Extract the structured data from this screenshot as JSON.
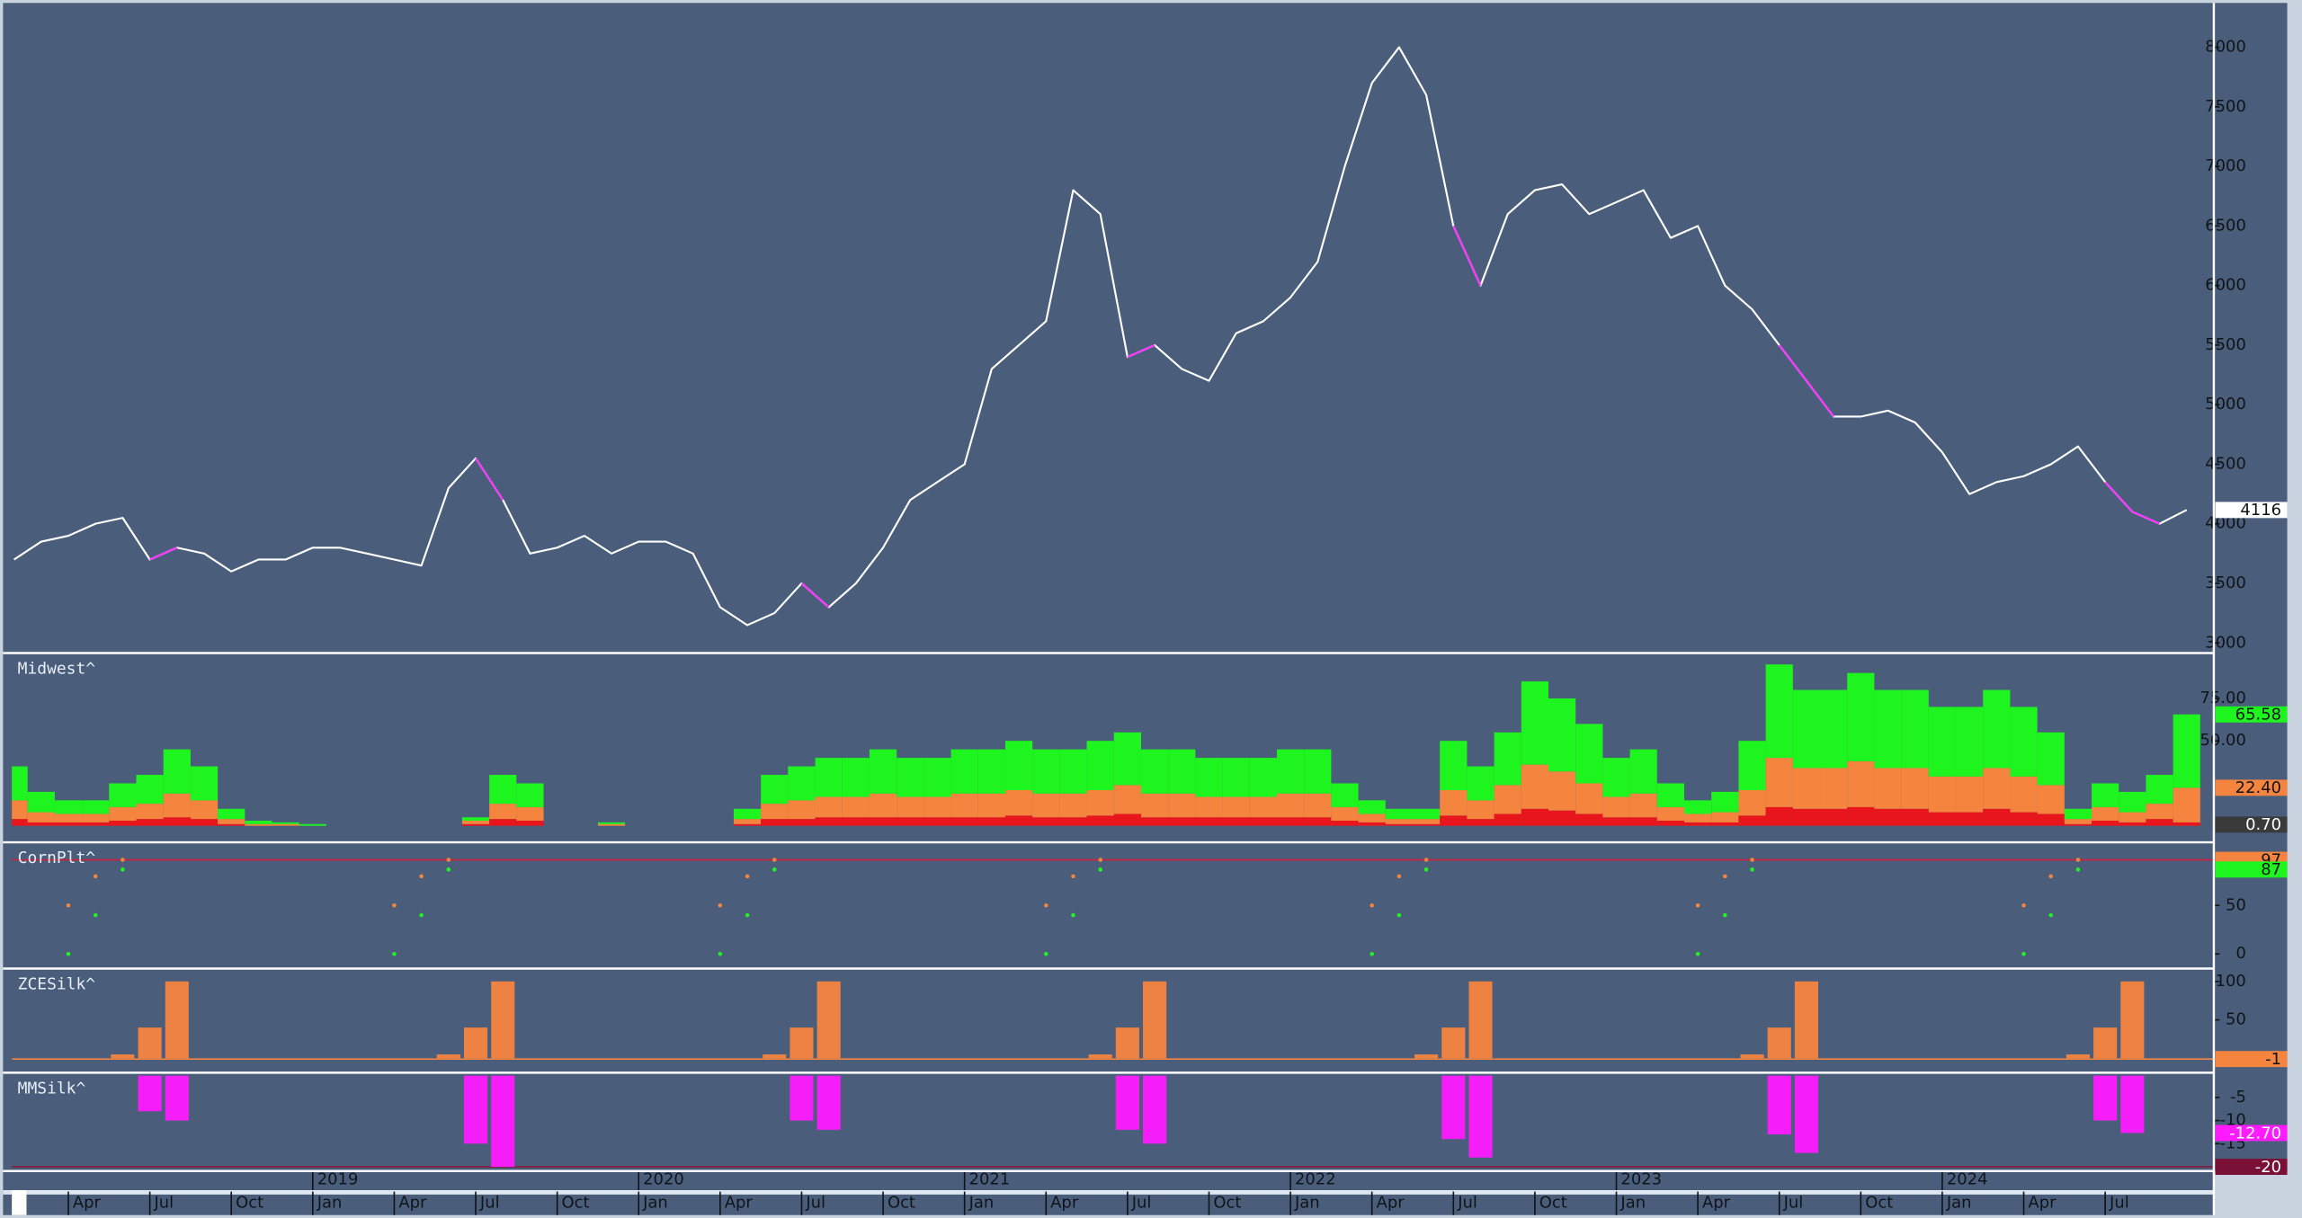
{
  "chart_data": [
    {
      "type": "line",
      "x": [
        "2018-02",
        "2018-03",
        "2018-04",
        "2018-05",
        "2018-06",
        "2018-07",
        "2018-08",
        "2018-09",
        "2018-10",
        "2018-11",
        "2018-12",
        "2019-01",
        "2019-02",
        "2019-03",
        "2019-04",
        "2019-05",
        "2019-06",
        "2019-07",
        "2019-08",
        "2019-09",
        "2019-10",
        "2019-11",
        "2019-12",
        "2020-01",
        "2020-02",
        "2020-03",
        "2020-04",
        "2020-05",
        "2020-06",
        "2020-07",
        "2020-08",
        "2020-09",
        "2020-10",
        "2020-11",
        "2020-12",
        "2021-01",
        "2021-02",
        "2021-03",
        "2021-04",
        "2021-05",
        "2021-06",
        "2021-07",
        "2021-08",
        "2021-09",
        "2021-10",
        "2021-11",
        "2021-12",
        "2022-01",
        "2022-02",
        "2022-03",
        "2022-04",
        "2022-05",
        "2022-06",
        "2022-07",
        "2022-08",
        "2022-09",
        "2022-10",
        "2022-11",
        "2022-12",
        "2023-01",
        "2023-02",
        "2023-03",
        "2023-04",
        "2023-05",
        "2023-06",
        "2023-07",
        "2023-08",
        "2023-09",
        "2023-10",
        "2023-11",
        "2023-12",
        "2024-01",
        "2024-02",
        "2024-03",
        "2024-04",
        "2024-05",
        "2024-06",
        "2024-07",
        "2024-08",
        "2024-09",
        "2024-10"
      ],
      "series": [
        {
          "color": "#ffffff",
          "values": [
            3700,
            3850,
            3900,
            4000,
            4050,
            3700,
            3800,
            3750,
            3600,
            3700,
            3700,
            3800,
            3800,
            3750,
            3700,
            3650,
            4300,
            4550,
            4200,
            3750,
            3800,
            3900,
            3750,
            3850,
            3850,
            3750,
            3300,
            3150,
            3250,
            3500,
            3300,
            3500,
            3800,
            4200,
            4350,
            4500,
            5300,
            5500,
            5700,
            6800,
            6600,
            5400,
            5500,
            5300,
            5200,
            5600,
            5700,
            5900,
            6200,
            7000,
            7700,
            8000,
            7600,
            6500,
            6000,
            6600,
            6800,
            6850,
            6600,
            6700,
            6800,
            6400,
            6500,
            6000,
            5800,
            5500,
            5200,
            4900,
            4900,
            4950,
            4850,
            4600,
            4250,
            4350,
            4400,
            4500,
            4650,
            4350,
            4100,
            4000,
            4116
          ]
        },
        {
          "color": "#ff33ff",
          "values": [
            null,
            null,
            null,
            null,
            null,
            3700,
            3800,
            null,
            null,
            null,
            null,
            null,
            null,
            null,
            null,
            null,
            null,
            4550,
            4200,
            null,
            null,
            null,
            null,
            null,
            null,
            null,
            null,
            null,
            null,
            3500,
            3300,
            null,
            null,
            null,
            null,
            null,
            null,
            null,
            null,
            null,
            null,
            5400,
            5500,
            null,
            null,
            null,
            null,
            null,
            null,
            null,
            null,
            null,
            null,
            6500,
            6000,
            null,
            null,
            null,
            null,
            null,
            null,
            null,
            null,
            null,
            null,
            5500,
            5200,
            4900,
            null,
            null,
            null,
            null,
            null,
            null,
            null,
            null,
            null,
            4350,
            4100,
            4000,
            null
          ]
        }
      ],
      "ylim": [
        2940,
        8360
      ],
      "yticks": [
        3000,
        3500,
        4000,
        4500,
        5000,
        5500,
        6000,
        6500,
        7000,
        7500,
        8000
      ],
      "tags": [
        {
          "value": 4116,
          "color": "#ffffff"
        }
      ]
    },
    {
      "type": "stacked_bar",
      "title": "Midwest^",
      "x": [
        "2018-02",
        "2018-03",
        "2018-04",
        "2018-05",
        "2018-06",
        "2018-07",
        "2018-08",
        "2018-09",
        "2018-10",
        "2018-11",
        "2018-12",
        "2019-01",
        "2019-02",
        "2019-03",
        "2019-04",
        "2019-05",
        "2019-06",
        "2019-07",
        "2019-08",
        "2019-09",
        "2019-10",
        "2019-11",
        "2019-12",
        "2020-01",
        "2020-02",
        "2020-03",
        "2020-04",
        "2020-05",
        "2020-06",
        "2020-07",
        "2020-08",
        "2020-09",
        "2020-10",
        "2020-11",
        "2020-12",
        "2021-01",
        "2021-02",
        "2021-03",
        "2021-04",
        "2021-05",
        "2021-06",
        "2021-07",
        "2021-08",
        "2021-09",
        "2021-10",
        "2021-11",
        "2021-12",
        "2022-01",
        "2022-02",
        "2022-03",
        "2022-04",
        "2022-05",
        "2022-06",
        "2022-07",
        "2022-08",
        "2022-09",
        "2022-10",
        "2022-11",
        "2022-12",
        "2023-01",
        "2023-02",
        "2023-03",
        "2023-04",
        "2023-05",
        "2023-06",
        "2023-07",
        "2023-08",
        "2023-09",
        "2023-10",
        "2023-11",
        "2023-12",
        "2024-01",
        "2024-02",
        "2024-03",
        "2024-04",
        "2024-05",
        "2024-06",
        "2024-07",
        "2024-08",
        "2024-09",
        "2024-10"
      ],
      "series": [
        {
          "color": "#e8161c",
          "values": [
            4,
            2,
            2,
            2,
            3,
            4,
            5,
            4,
            1,
            0,
            0,
            0,
            0,
            0,
            0,
            0,
            0,
            1,
            4,
            3,
            0,
            0,
            0,
            0,
            0,
            0,
            0,
            1,
            4,
            4,
            5,
            5,
            5,
            5,
            5,
            5,
            5,
            6,
            5,
            5,
            6,
            7,
            5,
            5,
            5,
            5,
            5,
            5,
            5,
            3,
            2,
            1,
            1,
            6,
            4,
            7,
            10,
            9,
            7,
            5,
            5,
            3,
            2,
            2,
            6,
            11,
            10,
            10,
            11,
            10,
            10,
            8,
            8,
            10,
            8,
            7,
            1,
            3,
            2,
            4,
            2
          ]
        },
        {
          "color": "#f5843f",
          "values": [
            11,
            6,
            5,
            5,
            8,
            9,
            14,
            11,
            3,
            1,
            1,
            0,
            0,
            0,
            0,
            0,
            0,
            2,
            9,
            8,
            0,
            0,
            1,
            0,
            0,
            0,
            0,
            3,
            9,
            11,
            12,
            12,
            14,
            12,
            12,
            14,
            14,
            15,
            14,
            14,
            15,
            17,
            14,
            14,
            12,
            12,
            12,
            14,
            14,
            8,
            5,
            3,
            3,
            15,
            11,
            17,
            26,
            23,
            18,
            12,
            14,
            8,
            5,
            6,
            15,
            29,
            24,
            24,
            27,
            24,
            24,
            21,
            21,
            24,
            21,
            17,
            3,
            8,
            6,
            9,
            20.4
          ]
        },
        {
          "color": "#1ef51e",
          "values": [
            20,
            12,
            8,
            8,
            14,
            17,
            26,
            20,
            6,
            2,
            1,
            1,
            0,
            0,
            0,
            0,
            0,
            2,
            17,
            14,
            0,
            0,
            1,
            0,
            0,
            0,
            0,
            6,
            17,
            20,
            23,
            23,
            26,
            23,
            23,
            26,
            26,
            29,
            26,
            26,
            29,
            31,
            26,
            26,
            23,
            23,
            23,
            26,
            26,
            14,
            8,
            6,
            6,
            29,
            20,
            31,
            49,
            43,
            35,
            23,
            26,
            14,
            8,
            12,
            29,
            55,
            46,
            46,
            52,
            46,
            46,
            41,
            41,
            46,
            41,
            31,
            6,
            14,
            12,
            17,
            43.18
          ]
        }
      ],
      "ylim": [
        -8,
        100
      ],
      "yticks": [
        {
          "value": 50,
          "label": "50.00"
        },
        {
          "value": 75,
          "label": "75.00"
        }
      ],
      "tags": [
        {
          "value": 65.58,
          "label": "65.58",
          "color": "#1ef51e"
        },
        {
          "value": 22.4,
          "label": "22.40",
          "color": "#f5843f"
        },
        {
          "value": 0.7,
          "label": "0.70",
          "color": "#3a3a3a",
          "text_color": "#ffffff"
        }
      ]
    },
    {
      "type": "scatter",
      "title": "CornPlt^",
      "x": [
        "2018-04",
        "2018-05",
        "2018-06",
        "2019-04",
        "2019-05",
        "2019-06",
        "2020-04",
        "2020-05",
        "2020-06",
        "2021-04",
        "2021-05",
        "2021-06",
        "2022-04",
        "2022-05",
        "2022-06",
        "2023-04",
        "2023-05",
        "2023-06",
        "2024-04",
        "2024-05",
        "2024-06"
      ],
      "series": [
        {
          "color": "#f5843f",
          "values": [
            50,
            80,
            97,
            50,
            80,
            97,
            50,
            80,
            97,
            50,
            80,
            97,
            50,
            80,
            97,
            50,
            80,
            97,
            50,
            80,
            97
          ]
        },
        {
          "color": "#1ef51e",
          "values": [
            0,
            40,
            87,
            0,
            40,
            87,
            0,
            40,
            87,
            0,
            40,
            87,
            0,
            40,
            87,
            0,
            40,
            87,
            0,
            40,
            87
          ]
        }
      ],
      "ylim": [
        -12,
        112
      ],
      "yticks": [
        0,
        50
      ],
      "ref_lines": [
        {
          "value": 97,
          "color": "#d0203a"
        }
      ],
      "tags": [
        {
          "value": 97,
          "color": "#f5843f"
        },
        {
          "value": 87,
          "color": "#1ef51e"
        }
      ]
    },
    {
      "type": "bar",
      "title": "ZCESilk^",
      "x": [
        "2018-06",
        "2018-07",
        "2018-08",
        "2019-06",
        "2019-07",
        "2019-08",
        "2020-06",
        "2020-07",
        "2020-08",
        "2021-06",
        "2021-07",
        "2021-08",
        "2022-06",
        "2022-07",
        "2022-08",
        "2023-06",
        "2023-07",
        "2023-08",
        "2024-06",
        "2024-07",
        "2024-08"
      ],
      "color": "#f5843f",
      "values": [
        5,
        40,
        100,
        5,
        40,
        100,
        5,
        40,
        100,
        5,
        40,
        100,
        5,
        40,
        100,
        5,
        40,
        100,
        5,
        40,
        100
      ],
      "ylim": [
        -15,
        113
      ],
      "yticks": [
        50,
        100
      ],
      "ref_lines": [
        {
          "value": -1,
          "color": "#f5843f"
        }
      ],
      "tags": [
        {
          "value": -1,
          "color": "#f5843f"
        }
      ]
    },
    {
      "type": "bar",
      "title": "MMSilk^",
      "x": [
        "2018-07",
        "2018-08",
        "2019-07",
        "2019-08",
        "2020-07",
        "2020-08",
        "2021-07",
        "2021-08",
        "2022-07",
        "2022-08",
        "2023-07",
        "2023-08",
        "2024-07",
        "2024-08"
      ],
      "color": "#ff1aff",
      "values": [
        -8,
        -10,
        -15,
        -20,
        -10,
        -12,
        -12,
        -15,
        -14,
        -18,
        -13,
        -17,
        -10,
        -12.7
      ],
      "ylim": [
        -20.6,
        -0.3
      ],
      "yticks": [
        -5,
        -10,
        -15
      ],
      "ref_lines": [
        {
          "value": -20,
          "color": "#8b1a3a"
        }
      ],
      "tags": [
        {
          "value": -12.7,
          "label": "-12.70",
          "color": "#ff1aff",
          "text_color": "#ffffff"
        },
        {
          "value": -20,
          "color": "#7a1035",
          "text_color": "#ffffff"
        }
      ]
    }
  ],
  "time_axis": {
    "month_ticks": [
      {
        "value": "2018-04",
        "label": "Apr"
      },
      {
        "value": "2018-07",
        "label": "Jul"
      },
      {
        "value": "2018-10",
        "label": "Oct"
      },
      {
        "value": "2019-01",
        "label": "Jan"
      },
      {
        "value": "2019-04",
        "label": "Apr"
      },
      {
        "value": "2019-07",
        "label": "Jul"
      },
      {
        "value": "2019-10",
        "label": "Oct"
      },
      {
        "value": "2020-01",
        "label": "Jan"
      },
      {
        "value": "2020-04",
        "label": "Apr"
      },
      {
        "value": "2020-07",
        "label": "Jul"
      },
      {
        "value": "2020-10",
        "label": "Oct"
      },
      {
        "value": "2021-01",
        "label": "Jan"
      },
      {
        "value": "2021-04",
        "label": "Apr"
      },
      {
        "value": "2021-07",
        "label": "Jul"
      },
      {
        "value": "2021-10",
        "label": "Oct"
      },
      {
        "value": "2022-01",
        "label": "Jan"
      },
      {
        "value": "2022-04",
        "label": "Apr"
      },
      {
        "value": "2022-07",
        "label": "Jul"
      },
      {
        "value": "2022-10",
        "label": "Oct"
      },
      {
        "value": "2023-01",
        "label": "Jan"
      },
      {
        "value": "2023-04",
        "label": "Apr"
      },
      {
        "value": "2023-07",
        "label": "Jul"
      },
      {
        "value": "2023-10",
        "label": "Oct"
      },
      {
        "value": "2024-01",
        "label": "Jan"
      },
      {
        "value": "2024-04",
        "label": "Apr"
      },
      {
        "value": "2024-07",
        "label": "Jul"
      }
    ],
    "year_ticks": [
      {
        "value": "2019-01",
        "label": "2019"
      },
      {
        "value": "2020-01",
        "label": "2020"
      },
      {
        "value": "2021-01",
        "label": "2021"
      },
      {
        "value": "2022-01",
        "label": "2022"
      },
      {
        "value": "2023-01",
        "label": "2023"
      },
      {
        "value": "2024-01",
        "label": "2024"
      }
    ]
  }
}
